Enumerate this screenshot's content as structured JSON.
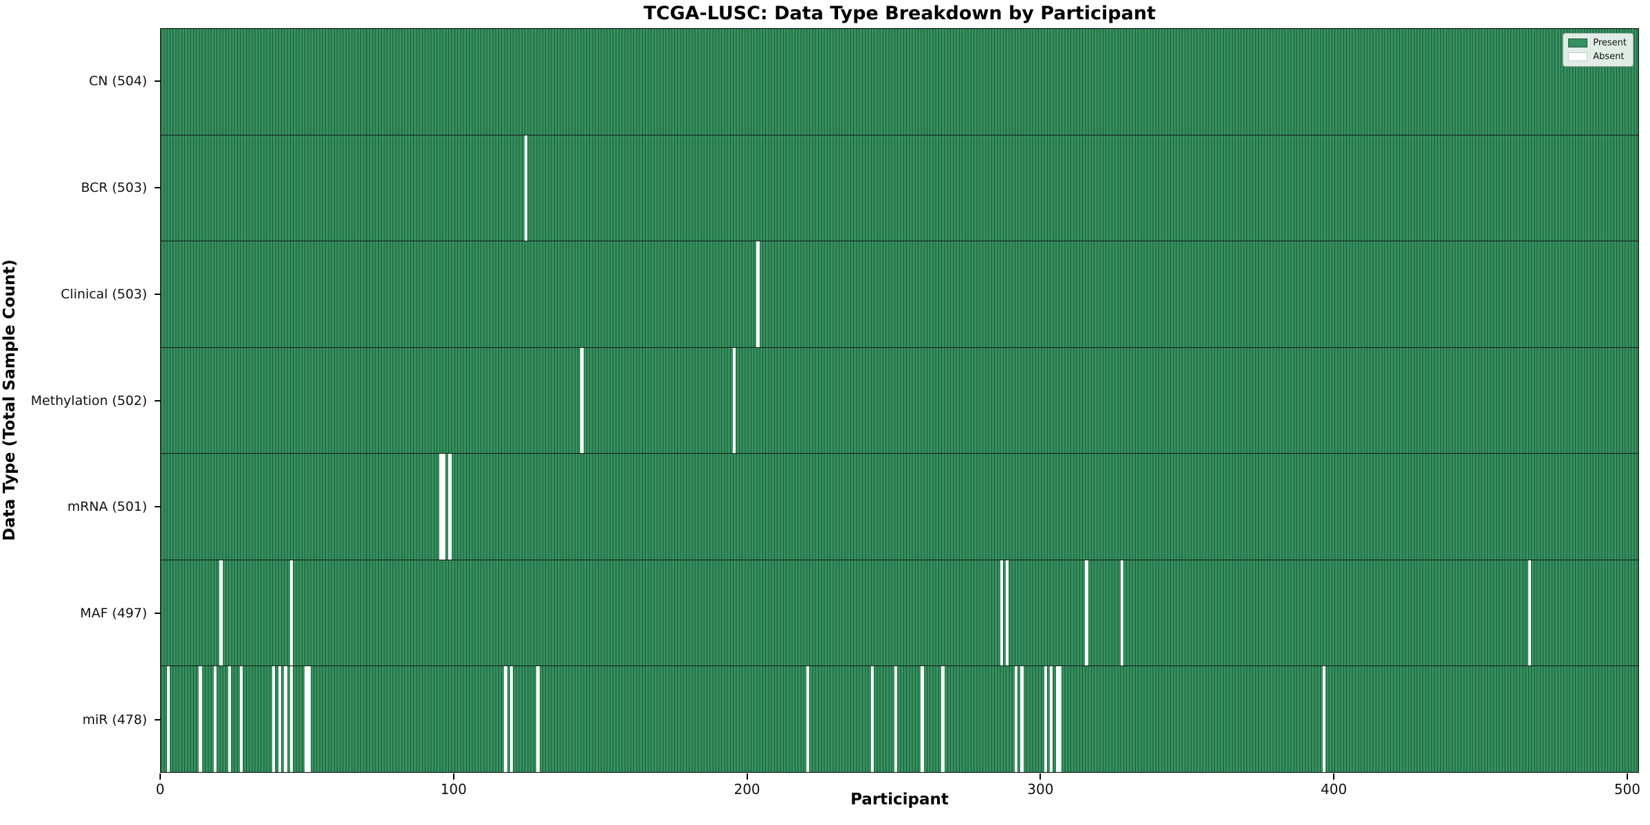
{
  "chart_data": {
    "type": "heatmap",
    "title": "TCGA-LUSC: Data Type Breakdown by Participant",
    "xlabel": "Participant",
    "ylabel": "Data Type (Total Sample Count)",
    "n_participants": 504,
    "x_axis_range": [
      0,
      504
    ],
    "x_tick_values": [
      0,
      100,
      200,
      300,
      400,
      500
    ],
    "x_tick_labels": [
      "0",
      "100",
      "200",
      "300",
      "400",
      "500"
    ],
    "grid": false,
    "legend_position": "upper right",
    "legend": [
      {
        "label": "Present",
        "color": "#35915f"
      },
      {
        "label": "Absent",
        "color": "#ffffff"
      }
    ],
    "colors": {
      "present_fill": "#35915f",
      "bar_edge": "#1d5737",
      "absent_fill": "#ffffff",
      "row_separator": "#141414"
    },
    "rows": [
      {
        "label": "CN (504)",
        "total": 504,
        "absent": []
      },
      {
        "label": "BCR (503)",
        "total": 503,
        "absent": [
          124
        ]
      },
      {
        "label": "Clinical (503)",
        "total": 503,
        "absent": [
          203
        ]
      },
      {
        "label": "Methylation (502)",
        "total": 502,
        "absent": [
          143,
          195
        ]
      },
      {
        "label": "mRNA (501)",
        "total": 501,
        "absent": [
          95,
          96,
          98
        ]
      },
      {
        "label": "MAF (497)",
        "total": 497,
        "absent": [
          20,
          44,
          286,
          288,
          315,
          327,
          466
        ]
      },
      {
        "label": "miR (478)",
        "total": 478,
        "absent": [
          2,
          13,
          18,
          23,
          27,
          38,
          40,
          42,
          44,
          49,
          50,
          117,
          119,
          128,
          220,
          242,
          250,
          259,
          266,
          291,
          293,
          301,
          303,
          305,
          306,
          396
        ]
      }
    ]
  }
}
